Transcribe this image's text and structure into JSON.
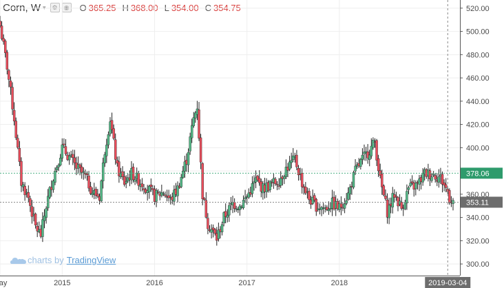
{
  "header": {
    "symbol": "Corn, W",
    "caret": "▾",
    "open_label": "O",
    "open": "365.25",
    "high_label": "H",
    "high": "368.00",
    "low_label": "L",
    "low": "354.00",
    "close_label": "C",
    "close": "354.75"
  },
  "watermark": {
    "prefix": "charts by",
    "brand": "TradingView"
  },
  "colors": {
    "up": "#53b987",
    "down": "#eb4d5c",
    "wick": "#222222",
    "grid": "#eeeeee",
    "price_line": "#4caf82",
    "label_bg": "#2e9b6c",
    "ref_line": "#888888",
    "label_gray": "#6d6d6d",
    "ohlc_value": "#d9413f"
  },
  "chart_data": {
    "type": "candlestick",
    "title": "Corn, W",
    "last_close": 354.75,
    "ylim": [
      290,
      527
    ],
    "y_ticks": [
      300,
      320,
      340,
      360,
      380,
      400,
      420,
      440,
      460,
      480,
      500,
      520
    ],
    "y_tick_labels": [
      "300.00",
      "320.00",
      "340.00",
      "360.00",
      "380.00",
      "400.00",
      "420.00",
      "440.00",
      "460.00",
      "480.00",
      "500.00",
      "520.00"
    ],
    "x_range": [
      "2014-05-05",
      "2019-03-25"
    ],
    "x_ticks": [
      {
        "date": "2014-05-05",
        "label": "May"
      },
      {
        "date": "2015-01-05",
        "label": "2015"
      },
      {
        "date": "2016-01-04",
        "label": "2016"
      },
      {
        "date": "2017-01-02",
        "label": "2017"
      },
      {
        "date": "2018-01-01",
        "label": "2018"
      }
    ],
    "crosshair_date": {
      "date": "2019-03-04",
      "label": "2019-03-04"
    },
    "price_labels": [
      {
        "value": 378.06,
        "label": "378.06",
        "style": "green"
      },
      {
        "value": 353.11,
        "label": "353.11",
        "style": "gray"
      }
    ],
    "grid": true,
    "close_anchors": [
      [
        "2014-05-05",
        505
      ],
      [
        "2014-06-02",
        470
      ],
      [
        "2014-06-30",
        425
      ],
      [
        "2014-07-28",
        370
      ],
      [
        "2014-08-25",
        357
      ],
      [
        "2014-09-22",
        332
      ],
      [
        "2014-10-13",
        325
      ],
      [
        "2014-11-03",
        350
      ],
      [
        "2014-12-01",
        375
      ],
      [
        "2015-01-05",
        400
      ],
      [
        "2015-02-02",
        392
      ],
      [
        "2015-03-02",
        383
      ],
      [
        "2015-04-06",
        375
      ],
      [
        "2015-05-04",
        362
      ],
      [
        "2015-06-01",
        358
      ],
      [
        "2015-06-22",
        398
      ],
      [
        "2015-07-13",
        425
      ],
      [
        "2015-08-10",
        382
      ],
      [
        "2015-09-07",
        370
      ],
      [
        "2015-10-05",
        378
      ],
      [
        "2015-11-02",
        372
      ],
      [
        "2015-12-07",
        365
      ],
      [
        "2016-01-04",
        358
      ],
      [
        "2016-02-08",
        362
      ],
      [
        "2016-03-07",
        355
      ],
      [
        "2016-04-04",
        365
      ],
      [
        "2016-05-09",
        390
      ],
      [
        "2016-06-06",
        425
      ],
      [
        "2016-06-20",
        436
      ],
      [
        "2016-07-11",
        360
      ],
      [
        "2016-08-01",
        335
      ],
      [
        "2016-09-05",
        322
      ],
      [
        "2016-10-03",
        340
      ],
      [
        "2016-11-07",
        352
      ],
      [
        "2016-12-05",
        350
      ],
      [
        "2017-01-02",
        358
      ],
      [
        "2017-02-06",
        372
      ],
      [
        "2017-03-06",
        365
      ],
      [
        "2017-04-03",
        368
      ],
      [
        "2017-05-08",
        372
      ],
      [
        "2017-06-05",
        382
      ],
      [
        "2017-07-10",
        390
      ],
      [
        "2017-08-07",
        370
      ],
      [
        "2017-09-04",
        356
      ],
      [
        "2017-10-02",
        350
      ],
      [
        "2017-11-06",
        348
      ],
      [
        "2017-12-04",
        352
      ],
      [
        "2018-01-01",
        348
      ],
      [
        "2018-02-05",
        360
      ],
      [
        "2018-03-05",
        380
      ],
      [
        "2018-04-02",
        390
      ],
      [
        "2018-05-07",
        400
      ],
      [
        "2018-05-21",
        405
      ],
      [
        "2018-06-11",
        372
      ],
      [
        "2018-07-09",
        345
      ],
      [
        "2018-08-06",
        360
      ],
      [
        "2018-09-03",
        348
      ],
      [
        "2018-10-01",
        365
      ],
      [
        "2018-11-05",
        368
      ],
      [
        "2018-12-03",
        378
      ],
      [
        "2019-01-07",
        377
      ],
      [
        "2019-02-04",
        374
      ],
      [
        "2019-03-04",
        362
      ],
      [
        "2019-03-11",
        357
      ],
      [
        "2019-03-25",
        354.75
      ]
    ]
  }
}
